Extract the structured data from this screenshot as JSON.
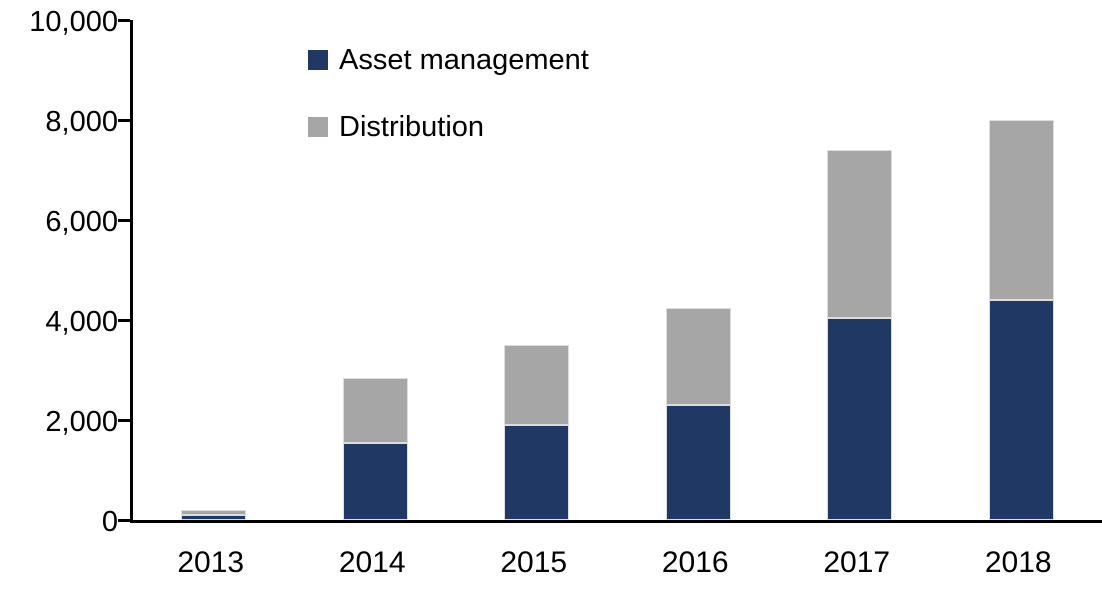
{
  "chart_data": {
    "type": "bar",
    "stacked": true,
    "title": "",
    "xlabel": "",
    "ylabel": "",
    "categories": [
      "2013",
      "2014",
      "2015",
      "2016",
      "2017",
      "2018"
    ],
    "series": [
      {
        "name": "Asset management",
        "color": "#203864",
        "values": [
          100,
          1550,
          1900,
          2300,
          4050,
          4400
        ]
      },
      {
        "name": "Distribution",
        "color": "#a6a6a6",
        "values": [
          110,
          1300,
          1600,
          1950,
          3350,
          3600
        ]
      }
    ],
    "totals": [
      210,
      2850,
      3500,
      4250,
      7400,
      8000
    ],
    "ylim": [
      0,
      10000
    ],
    "ytick_step": 2000,
    "ytick_labels": [
      "0",
      "2,000",
      "4,000",
      "6,000",
      "8,000",
      "10,000"
    ],
    "legend_position": "top-left",
    "grid": false,
    "axis_color": "#000000",
    "background_color": "#ffffff"
  }
}
